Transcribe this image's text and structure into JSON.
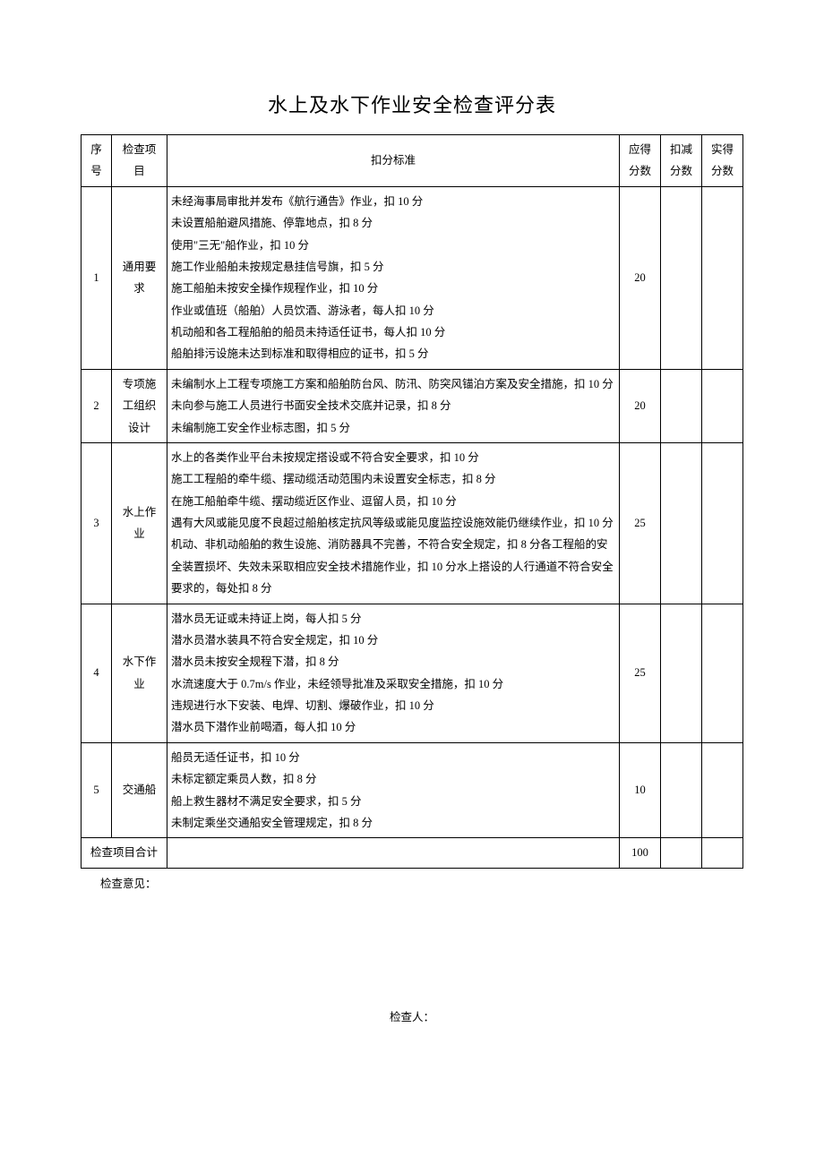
{
  "title": "水上及水下作业安全检查评分表",
  "headers": {
    "seq": "序号",
    "item": "检查项目",
    "criteria": "扣分标准",
    "score": "应得分数",
    "deduct": "扣减分数",
    "actual": "实得分数"
  },
  "rows": [
    {
      "seq": "1",
      "item": "通用要求",
      "criteria": [
        "未经海事局审批并发布《航行通告》作业，扣 10 分",
        "未设置船舶避风措施、停靠地点，扣 8 分",
        "使用\"三无\"船作业，扣 10 分",
        "施工作业船舶未按规定悬挂信号旗，扣 5 分",
        "施工船舶未按安全操作规程作业，扣 10 分",
        "作业或值班（船舶）人员饮酒、游泳者，每人扣 10 分",
        "机动船和各工程船舶的船员未持适任证书，每人扣 10 分",
        "船舶排污设施未达到标准和取得相应的证书，扣 5 分"
      ],
      "score": "20",
      "deduct": "",
      "actual": ""
    },
    {
      "seq": "2",
      "item": "专项施工组织设计",
      "criteria": [
        "未编制水上工程专项施工方案和船舶防台风、防汛、防突风锚泊方案及安全措施，扣 10 分",
        "未向参与施工人员进行书面安全技术交底并记录，扣 8 分",
        "未编制施工安全作业标志图，扣 5 分"
      ],
      "score": "20",
      "deduct": "",
      "actual": ""
    },
    {
      "seq": "3",
      "item": "水上作业",
      "criteria": [
        "水上的各类作业平台未按规定搭设或不符合安全要求，扣 10 分",
        "施工工程船的牵牛缆、摆动缆活动范围内未设置安全标志，扣 8 分",
        "在施工船舶牵牛缆、摆动缆近区作业、逗留人员，扣 10 分",
        "遇有大风或能见度不良超过船舶核定抗风等级或能见度监控设施效能仍继续作业，扣 10 分",
        "机动、非机动船舶的救生设施、消防器具不完善，不符合安全规定，扣 8 分各工程船的安全装置损坏、失效未采取相应安全技术措施作业，扣 10 分水上搭设的人行通道不符合安全要求的，每处扣 8 分"
      ],
      "score": "25",
      "deduct": "",
      "actual": ""
    },
    {
      "seq": "4",
      "item": "水下作业",
      "criteria": [
        "潜水员无证或未持证上岗，每人扣 5 分",
        "潜水员潜水装具不符合安全规定，扣 10 分",
        "潜水员未按安全规程下潜，扣 8 分",
        "水流速度大于 0.7m/s 作业，未经领导批准及采取安全措施，扣 10 分",
        "违规进行水下安装、电焊、切割、爆破作业，扣 10 分",
        "潜水员下潜作业前喝酒，每人扣 10 分"
      ],
      "score": "25",
      "deduct": "",
      "actual": ""
    },
    {
      "seq": "5",
      "item": "交通船",
      "criteria": [
        "船员无适任证书，扣 10 分",
        "未标定额定乘员人数，扣 8 分",
        "船上救生器材不满足安全要求，扣 5 分",
        "未制定乘坐交通船安全管理规定，扣 8 分"
      ],
      "score": "10",
      "deduct": "",
      "actual": ""
    }
  ],
  "totalRow": {
    "label": "检查项目合计",
    "score": "100",
    "deduct": "",
    "actual": ""
  },
  "opinionLabel": "检查意见：",
  "checkerLabel": "检查人："
}
